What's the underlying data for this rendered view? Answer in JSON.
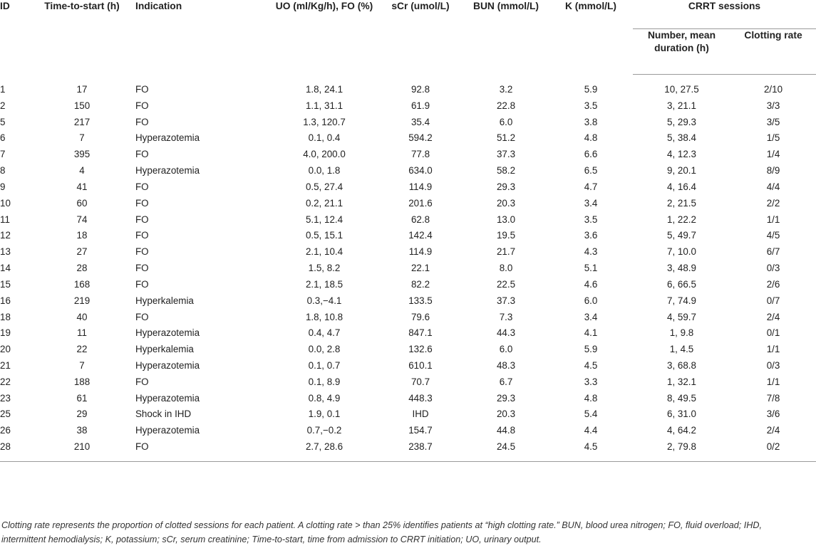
{
  "table": {
    "headers": {
      "id": "ID",
      "time": "Time-to-start (h)",
      "indication": "Indication",
      "uo_fo": "UO (ml/Kg/h), FO (%)",
      "scr": "sCr (umol/L)",
      "bun": "BUN (mmol/L)",
      "k": "K (mmol/L)",
      "crrt": "CRRT sessions",
      "number": "Number, mean duration (h)",
      "clotting": "Clotting rate"
    },
    "rows": [
      [
        "1",
        "17",
        "FO",
        "1.8, 24.1",
        "92.8",
        "3.2",
        "5.9",
        "10, 27.5",
        "2/10"
      ],
      [
        "2",
        "150",
        "FO",
        "1.1, 31.1",
        "61.9",
        "22.8",
        "3.5",
        "3, 21.1",
        "3/3"
      ],
      [
        "5",
        "217",
        "FO",
        "1.3, 120.7",
        "35.4",
        "6.0",
        "3.8",
        "5, 29.3",
        "3/5"
      ],
      [
        "6",
        "7",
        "Hyperazotemia",
        "0.1, 0.4",
        "594.2",
        "51.2",
        "4.8",
        "5, 38.4",
        "1/5"
      ],
      [
        "7",
        "395",
        "FO",
        "4.0, 200.0",
        "77.8",
        "37.3",
        "6.6",
        "4, 12.3",
        "1/4"
      ],
      [
        "8",
        "4",
        "Hyperazotemia",
        "0.0, 1.8",
        "634.0",
        "58.2",
        "6.5",
        "9, 20.1",
        "8/9"
      ],
      [
        "9",
        "41",
        "FO",
        "0.5, 27.4",
        "114.9",
        "29.3",
        "4.7",
        "4, 16.4",
        "4/4"
      ],
      [
        "10",
        "60",
        "FO",
        "0.2, 21.1",
        "201.6",
        "20.3",
        "3.4",
        "2, 21.5",
        "2/2"
      ],
      [
        "11",
        "74",
        "FO",
        "5.1, 12.4",
        "62.8",
        "13.0",
        "3.5",
        "1, 22.2",
        "1/1"
      ],
      [
        "12",
        "18",
        "FO",
        "0.5, 15.1",
        "142.4",
        "19.5",
        "3.6",
        "5, 49.7",
        "4/5"
      ],
      [
        "13",
        "27",
        "FO",
        "2.1, 10.4",
        "114.9",
        "21.7",
        "4.3",
        "7, 10.0",
        "6/7"
      ],
      [
        "14",
        "28",
        "FO",
        "1.5, 8.2",
        "22.1",
        "8.0",
        "5.1",
        "3, 48.9",
        "0/3"
      ],
      [
        "15",
        "168",
        "FO",
        "2.1, 18.5",
        "82.2",
        "22.5",
        "4.6",
        "6, 66.5",
        "2/6"
      ],
      [
        "16",
        "219",
        "Hyperkalemia",
        "0.3,−4.1",
        "133.5",
        "37.3",
        "6.0",
        "7, 74.9",
        "0/7"
      ],
      [
        "18",
        "40",
        "FO",
        "1.8, 10.8",
        "79.6",
        "7.3",
        "3.4",
        "4, 59.7",
        "2/4"
      ],
      [
        "19",
        "11",
        "Hyperazotemia",
        "0.4, 4.7",
        "847.1",
        "44.3",
        "4.1",
        "1, 9.8",
        "0/1"
      ],
      [
        "20",
        "22",
        "Hyperkalemia",
        "0.0, 2.8",
        "132.6",
        "6.0",
        "5.9",
        "1, 4.5",
        "1/1"
      ],
      [
        "21",
        "7",
        "Hyperazotemia",
        "0.1, 0.7",
        "610.1",
        "48.3",
        "4.5",
        "3, 68.8",
        "0/3"
      ],
      [
        "22",
        "188",
        "FO",
        "0.1, 8.9",
        "70.7",
        "6.7",
        "3.3",
        "1, 32.1",
        "1/1"
      ],
      [
        "23",
        "61",
        "Hyperazotemia",
        "0.8, 4.9",
        "448.3",
        "29.3",
        "4.8",
        "8, 49.5",
        "7/8"
      ],
      [
        "25",
        "29",
        "Shock in IHD",
        "1.9, 0.1",
        "IHD",
        "20.3",
        "5.4",
        "6, 31.0",
        "3/6"
      ],
      [
        "26",
        "38",
        "Hyperazotemia",
        "0.7,−0.2",
        "154.7",
        "44.8",
        "4.4",
        "4, 64.2",
        "2/4"
      ],
      [
        "28",
        "210",
        "FO",
        "2.7, 28.6",
        "238.7",
        "24.5",
        "4.5",
        "2, 79.8",
        "0/2"
      ]
    ]
  },
  "footnote": "Clotting rate represents the proportion of clotted sessions for each patient. A clotting rate > than 25% identifies patients at “high clotting rate.” BUN, blood urea nitrogen; FO, fluid overload; IHD, intermittent hemodialysis; K, potassium; sCr, serum creatinine; Time-to-start, time from admission to CRRT initiation; UO, urinary output."
}
